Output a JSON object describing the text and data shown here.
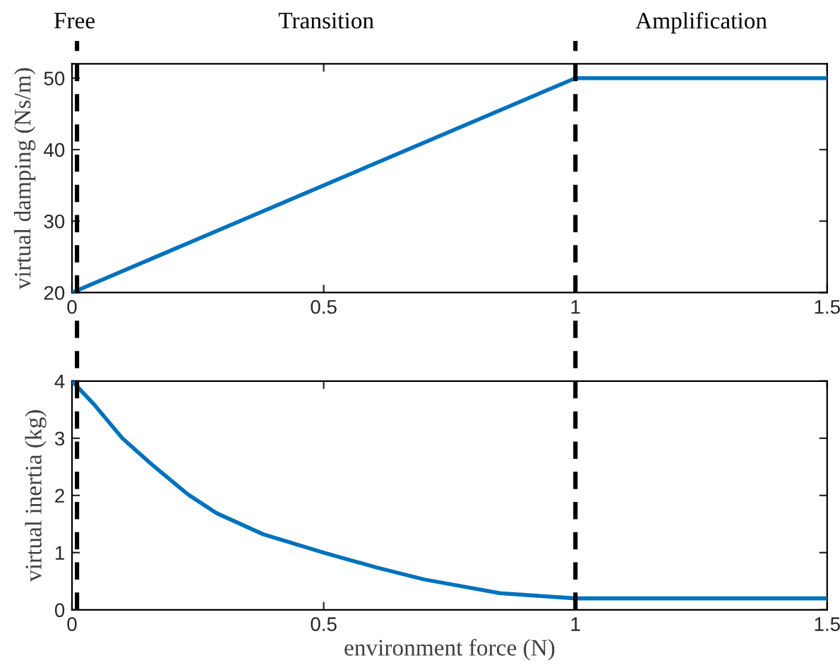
{
  "chart_data": [
    {
      "type": "line",
      "ylabel": "virtual damping (Ns/m)",
      "x": [
        0,
        1,
        1.5
      ],
      "series": [
        {
          "color": "#0072bd",
          "values": [
            20,
            50,
            50
          ]
        }
      ],
      "xlim": [
        0,
        1.5
      ],
      "xticks": [
        0,
        0.5,
        1,
        1.5
      ],
      "ylim": [
        20,
        52
      ],
      "yticks": [
        20,
        30,
        40,
        50
      ],
      "grid": false,
      "legend": false,
      "ref_lines": [
        {
          "axis": "x",
          "value": 0.01,
          "color": "#000000",
          "line_style": "dashed"
        },
        {
          "axis": "x",
          "value": 1,
          "color": "#000000",
          "line_style": "dashed"
        }
      ],
      "annotations": [
        "Free",
        "Transition",
        "Amplification"
      ]
    },
    {
      "type": "line",
      "xlabel": "environment force (N)",
      "ylabel": "virtual inertia (kg)",
      "x": [
        0,
        0.044,
        0.1,
        0.156,
        0.23,
        0.287,
        0.38,
        0.5,
        0.605,
        0.7,
        0.85,
        1,
        1.5
      ],
      "series": [
        {
          "color": "#0072bd",
          "values": [
            4,
            3.59,
            3.0,
            2.56,
            2.02,
            1.69,
            1.32,
            1.0,
            0.74,
            0.53,
            0.29,
            0.2,
            0.2
          ]
        }
      ],
      "xlim": [
        0,
        1.5
      ],
      "xticks": [
        0,
        0.5,
        1,
        1.5
      ],
      "ylim": [
        0,
        4
      ],
      "yticks": [
        0,
        1,
        2,
        3,
        4
      ],
      "grid": false,
      "legend": false,
      "ref_lines": [
        {
          "axis": "x",
          "value": 0.01,
          "color": "#000000",
          "line_style": "dashed"
        },
        {
          "axis": "x",
          "value": 1,
          "color": "#000000",
          "line_style": "dashed"
        }
      ]
    }
  ]
}
